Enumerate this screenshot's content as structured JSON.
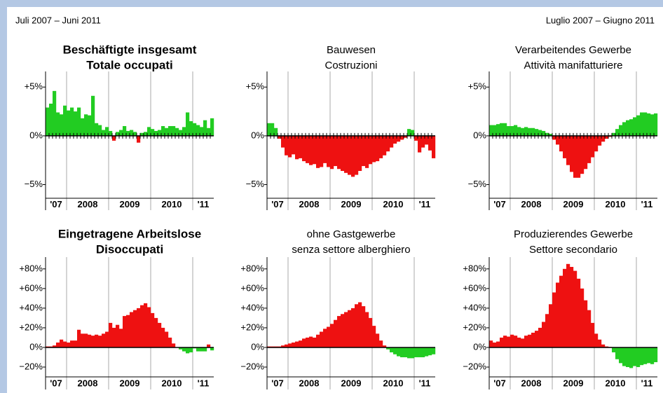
{
  "header": {
    "left": "Juli 2007 – Juni 2011",
    "right": "Luglio 2007 – Giugno 2011"
  },
  "chart_data": [
    {
      "type": "bar",
      "title": "Beschäftigte insgesamt",
      "subtitle": "Totale occupati",
      "bold": true,
      "categories": [
        null,
        null,
        null,
        null,
        null,
        null,
        null,
        null,
        null,
        null,
        null,
        null,
        null,
        null,
        null,
        null,
        null,
        null,
        null,
        null,
        null,
        null,
        null,
        null,
        null,
        null,
        null,
        null,
        null,
        null,
        null,
        null,
        null,
        null,
        null,
        null,
        null,
        null,
        null,
        null,
        null,
        null,
        null,
        null,
        null,
        null,
        null,
        null
      ],
      "values": [
        2.9,
        3.3,
        4.6,
        2.4,
        2.2,
        3.1,
        2.6,
        2.9,
        2.5,
        2.9,
        1.8,
        2.2,
        2.1,
        4.1,
        1.3,
        1.1,
        0.6,
        0.9,
        0.5,
        -0.5,
        0.4,
        0.6,
        1.0,
        0.5,
        0.6,
        0.4,
        -0.7,
        0.3,
        0.4,
        0.9,
        0.7,
        0.5,
        0.6,
        1.0,
        0.8,
        1.0,
        1.0,
        0.8,
        0.6,
        0.9,
        2.4,
        1.5,
        1.3,
        1.1,
        0.9,
        1.6,
        0.8,
        1.8
      ],
      "ylim": [
        -6.4,
        6.6
      ],
      "yticks": [
        {
          "value": -5,
          "label": "−5%"
        },
        {
          "value": 0,
          "label": "0%"
        },
        {
          "value": 5,
          "label": "+5%"
        }
      ],
      "xlim": [
        0,
        48
      ],
      "xticks": [
        {
          "value": 3,
          "label": "'07"
        },
        {
          "value": 12,
          "label": "2008"
        },
        {
          "value": 24,
          "label": "2009"
        },
        {
          "value": 36,
          "label": "2010"
        },
        {
          "value": 45,
          "label": "'11"
        }
      ],
      "xgrid": [
        6,
        18,
        30,
        42
      ],
      "positive_color": "#22cc22",
      "negative_color": "#ee1111"
    },
    {
      "type": "bar",
      "title": "Bauwesen",
      "subtitle": "Costruzioni",
      "bold": false,
      "categories": [
        null,
        null,
        null,
        null,
        null,
        null,
        null,
        null,
        null,
        null,
        null,
        null,
        null,
        null,
        null,
        null,
        null,
        null,
        null,
        null,
        null,
        null,
        null,
        null,
        null,
        null,
        null,
        null,
        null,
        null,
        null,
        null,
        null,
        null,
        null,
        null,
        null,
        null,
        null,
        null,
        null,
        null,
        null,
        null,
        null,
        null,
        null,
        null
      ],
      "values": [
        1.3,
        1.3,
        0.8,
        -0.3,
        -1.2,
        -2.0,
        -2.2,
        -1.9,
        -2.4,
        -2.3,
        -2.6,
        -2.8,
        -3.0,
        -2.9,
        -3.3,
        -3.2,
        -2.8,
        -3.2,
        -3.4,
        -3.1,
        -3.4,
        -3.6,
        -3.8,
        -4.0,
        -4.2,
        -4.0,
        -3.6,
        -3.1,
        -3.3,
        -2.9,
        -2.7,
        -2.6,
        -2.3,
        -2.0,
        -1.6,
        -1.2,
        -0.8,
        -0.6,
        -0.4,
        -0.2,
        0.7,
        0.6,
        -0.5,
        -1.7,
        -1.2,
        -0.9,
        -1.5,
        -2.3
      ],
      "ylim": [
        -6.4,
        6.6
      ],
      "yticks": [
        {
          "value": -5,
          "label": "−5%"
        },
        {
          "value": 0,
          "label": "0%"
        },
        {
          "value": 5,
          "label": "+5%"
        }
      ],
      "xlim": [
        0,
        48
      ],
      "xticks": [
        {
          "value": 3,
          "label": "'07"
        },
        {
          "value": 12,
          "label": "2008"
        },
        {
          "value": 24,
          "label": "2009"
        },
        {
          "value": 36,
          "label": "2010"
        },
        {
          "value": 45,
          "label": "'11"
        }
      ],
      "xgrid": [
        6,
        18,
        30,
        42
      ],
      "positive_color": "#22cc22",
      "negative_color": "#ee1111"
    },
    {
      "type": "bar",
      "title": "Verarbeitendes Gewerbe",
      "subtitle": "Attività manifatturiere",
      "bold": false,
      "categories": [
        null,
        null,
        null,
        null,
        null,
        null,
        null,
        null,
        null,
        null,
        null,
        null,
        null,
        null,
        null,
        null,
        null,
        null,
        null,
        null,
        null,
        null,
        null,
        null,
        null,
        null,
        null,
        null,
        null,
        null,
        null,
        null,
        null,
        null,
        null,
        null,
        null,
        null,
        null,
        null,
        null,
        null,
        null,
        null,
        null,
        null,
        null,
        null
      ],
      "values": [
        1.1,
        1.1,
        1.2,
        1.3,
        1.3,
        1.0,
        1.0,
        1.1,
        0.9,
        0.8,
        0.9,
        0.8,
        0.8,
        0.7,
        0.6,
        0.5,
        0.3,
        0.2,
        -0.4,
        -0.9,
        -1.6,
        -2.3,
        -3.0,
        -3.7,
        -4.3,
        -4.3,
        -3.9,
        -3.4,
        -2.8,
        -2.2,
        -1.6,
        -1.0,
        -0.6,
        -0.3,
        -0.1,
        0.3,
        0.7,
        1.1,
        1.4,
        1.6,
        1.7,
        1.9,
        2.1,
        2.4,
        2.4,
        2.3,
        2.2,
        2.3
      ],
      "ylim": [
        -6.4,
        6.6
      ],
      "yticks": [
        {
          "value": -5,
          "label": "−5%"
        },
        {
          "value": 0,
          "label": "0%"
        },
        {
          "value": 5,
          "label": "+5%"
        }
      ],
      "xlim": [
        0,
        48
      ],
      "xticks": [
        {
          "value": 3,
          "label": "'07"
        },
        {
          "value": 12,
          "label": "2008"
        },
        {
          "value": 24,
          "label": "2009"
        },
        {
          "value": 36,
          "label": "2010"
        },
        {
          "value": 45,
          "label": "'11"
        }
      ],
      "xgrid": [
        6,
        18,
        30,
        42
      ],
      "positive_color": "#22cc22",
      "negative_color": "#ee1111"
    },
    {
      "type": "bar",
      "title": "Eingetragene Arbeitslose",
      "subtitle": "Disoccupati",
      "bold": true,
      "categories": [
        null,
        null,
        null,
        null,
        null,
        null,
        null,
        null,
        null,
        null,
        null,
        null,
        null,
        null,
        null,
        null,
        null,
        null,
        null,
        null,
        null,
        null,
        null,
        null,
        null,
        null,
        null,
        null,
        null,
        null,
        null,
        null,
        null,
        null,
        null,
        null,
        null,
        null,
        null,
        null,
        null,
        null,
        null,
        null,
        null,
        null,
        null,
        null
      ],
      "values": [
        1,
        1,
        2,
        5,
        8,
        6,
        5,
        7,
        7,
        18,
        14,
        14,
        13,
        12,
        13,
        12,
        14,
        16,
        25,
        20,
        23,
        19,
        32,
        33,
        36,
        38,
        40,
        43,
        45,
        41,
        35,
        30,
        25,
        20,
        16,
        10,
        4,
        0,
        -2,
        -4,
        -6,
        -5,
        -1,
        -4,
        -4,
        -4,
        3,
        -3
      ],
      "ylim": [
        -30,
        92
      ],
      "yticks": [
        {
          "value": -20,
          "label": "−20%"
        },
        {
          "value": 0,
          "label": "0%"
        },
        {
          "value": 20,
          "label": "+20%"
        },
        {
          "value": 40,
          "label": "+40%"
        },
        {
          "value": 60,
          "label": "+60%"
        },
        {
          "value": 80,
          "label": "+80%"
        }
      ],
      "xlim": [
        0,
        48
      ],
      "xticks": [
        {
          "value": 3,
          "label": "'07"
        },
        {
          "value": 12,
          "label": "2008"
        },
        {
          "value": 24,
          "label": "2009"
        },
        {
          "value": 36,
          "label": "2010"
        },
        {
          "value": 45,
          "label": "'11"
        }
      ],
      "xgrid": [
        6,
        18,
        30,
        42
      ],
      "positive_color": "#ee1111",
      "negative_color": "#22cc22"
    },
    {
      "type": "bar",
      "title": "ohne Gastgewerbe",
      "subtitle": "senza settore alberghiero",
      "bold": false,
      "categories": [
        null,
        null,
        null,
        null,
        null,
        null,
        null,
        null,
        null,
        null,
        null,
        null,
        null,
        null,
        null,
        null,
        null,
        null,
        null,
        null,
        null,
        null,
        null,
        null,
        null,
        null,
        null,
        null,
        null,
        null,
        null,
        null,
        null,
        null,
        null,
        null,
        null,
        null,
        null,
        null,
        null,
        null,
        null,
        null,
        null,
        null,
        null,
        null
      ],
      "values": [
        1,
        1,
        1,
        1,
        2,
        3,
        4,
        5,
        6,
        7,
        9,
        10,
        11,
        10,
        13,
        16,
        19,
        21,
        24,
        28,
        32,
        34,
        36,
        38,
        40,
        44,
        46,
        42,
        36,
        30,
        22,
        14,
        7,
        2,
        -2,
        -5,
        -7,
        -9,
        -10,
        -10,
        -11,
        -11,
        -10,
        -10,
        -10,
        -9,
        -8,
        -7
      ],
      "ylim": [
        -30,
        92
      ],
      "yticks": [
        {
          "value": -20,
          "label": "−20%"
        },
        {
          "value": 0,
          "label": "0%"
        },
        {
          "value": 20,
          "label": "+20%"
        },
        {
          "value": 40,
          "label": "+40%"
        },
        {
          "value": 60,
          "label": "+60%"
        },
        {
          "value": 80,
          "label": "+80%"
        }
      ],
      "xlim": [
        0,
        48
      ],
      "xticks": [
        {
          "value": 3,
          "label": "'07"
        },
        {
          "value": 12,
          "label": "2008"
        },
        {
          "value": 24,
          "label": "2009"
        },
        {
          "value": 36,
          "label": "2010"
        },
        {
          "value": 45,
          "label": "'11"
        }
      ],
      "xgrid": [
        6,
        18,
        30,
        42
      ],
      "positive_color": "#ee1111",
      "negative_color": "#22cc22"
    },
    {
      "type": "bar",
      "title": "Produzierendes Gewerbe",
      "subtitle": "Settore secondario",
      "bold": false,
      "categories": [
        null,
        null,
        null,
        null,
        null,
        null,
        null,
        null,
        null,
        null,
        null,
        null,
        null,
        null,
        null,
        null,
        null,
        null,
        null,
        null,
        null,
        null,
        null,
        null,
        null,
        null,
        null,
        null,
        null,
        null,
        null,
        null,
        null,
        null,
        null,
        null,
        null,
        null,
        null,
        null,
        null,
        null,
        null,
        null,
        null,
        null,
        null,
        null
      ],
      "values": [
        7,
        5,
        6,
        10,
        12,
        11,
        13,
        12,
        10,
        9,
        12,
        13,
        15,
        17,
        20,
        26,
        34,
        44,
        56,
        66,
        73,
        80,
        85,
        82,
        78,
        70,
        60,
        48,
        38,
        25,
        14,
        8,
        3,
        1,
        0.5,
        -5,
        -12,
        -16,
        -19,
        -20,
        -21,
        -19,
        -20,
        -18,
        -17,
        -16,
        -17,
        -15
      ],
      "ylim": [
        -30,
        92
      ],
      "yticks": [
        {
          "value": -20,
          "label": "−20%"
        },
        {
          "value": 0,
          "label": "0%"
        },
        {
          "value": 20,
          "label": "+20%"
        },
        {
          "value": 40,
          "label": "+40%"
        },
        {
          "value": 60,
          "label": "+60%"
        },
        {
          "value": 80,
          "label": "+80%"
        }
      ],
      "xlim": [
        0,
        48
      ],
      "xticks": [
        {
          "value": 3,
          "label": "'07"
        },
        {
          "value": 12,
          "label": "2008"
        },
        {
          "value": 24,
          "label": "2009"
        },
        {
          "value": 36,
          "label": "2010"
        },
        {
          "value": 45,
          "label": "'11"
        }
      ],
      "xgrid": [
        6,
        18,
        30,
        42
      ],
      "positive_color": "#ee1111",
      "negative_color": "#22cc22"
    }
  ]
}
